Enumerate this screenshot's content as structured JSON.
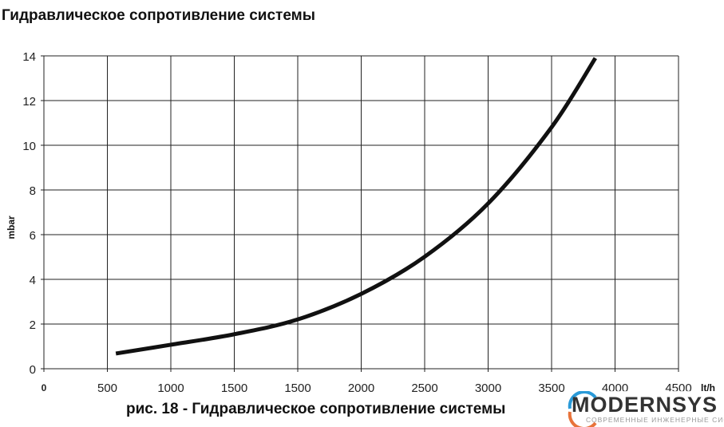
{
  "chart_data": {
    "type": "line",
    "title": "Гидравлическое сопротивление системы",
    "caption": "рис. 18 - Гидравлическое сопротивление системы",
    "xlabel": "lt/h",
    "ylabel": "mbar",
    "x_tick_labels": [
      "0",
      "500",
      "1000",
      "1500",
      "1500",
      "2000",
      "2500",
      "3000",
      "3500",
      "4000",
      "4500"
    ],
    "y_tick_labels": [
      "0",
      "2",
      "4",
      "6",
      "8",
      "10",
      "12",
      "14"
    ],
    "ylim": [
      0,
      14
    ],
    "grid": true,
    "series": [
      {
        "color": "#111111",
        "points": [
          [
            67,
            0.68
          ],
          [
            495,
            1.07
          ],
          [
            997,
            1.54
          ],
          [
            1496,
            2.2
          ],
          [
            2000,
            3.35
          ],
          [
            2497,
            5.0
          ],
          [
            3001,
            7.4
          ],
          [
            3499,
            10.8
          ],
          [
            3845,
            13.9
          ]
        ]
      }
    ]
  },
  "logo": {
    "name": "MODERNSYS",
    "tagline": "СОВРЕМЕННЫЕ ИНЖЕНЕРНЫЕ СИСТЕМЫ",
    "colors": [
      "#2a9ad8",
      "#e8733a"
    ]
  }
}
